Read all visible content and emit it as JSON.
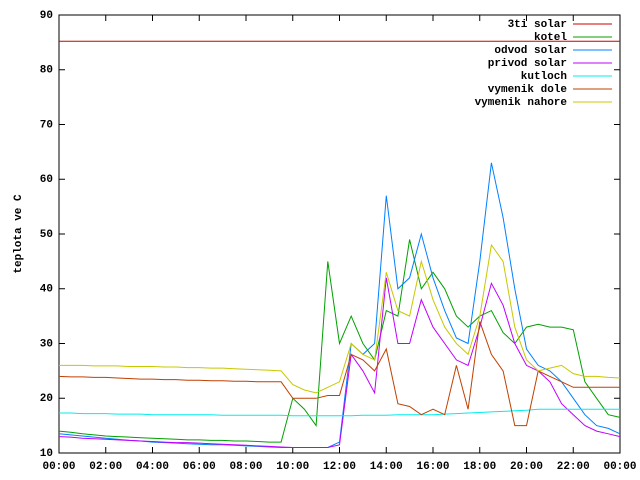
{
  "chart_data": {
    "type": "line",
    "ylabel": "teplota ve C",
    "x": [
      0,
      0.5,
      1,
      1.5,
      2,
      2.5,
      3,
      3.5,
      4,
      4.5,
      5,
      5.5,
      6,
      6.5,
      7,
      7.5,
      8,
      8.5,
      9,
      9.5,
      10,
      10.5,
      11,
      11.5,
      12,
      12.5,
      13,
      13.5,
      14,
      14.5,
      15,
      15.5,
      16,
      16.5,
      17,
      17.5,
      18,
      18.5,
      19,
      19.5,
      20,
      20.5,
      21,
      21.5,
      22,
      22.5,
      23,
      23.5,
      24
    ],
    "xlim": [
      0,
      24
    ],
    "xticks": [
      {
        "value": 0,
        "label": "00:00"
      },
      {
        "value": 2,
        "label": "02:00"
      },
      {
        "value": 4,
        "label": "04:00"
      },
      {
        "value": 6,
        "label": "06:00"
      },
      {
        "value": 8,
        "label": "08:00"
      },
      {
        "value": 10,
        "label": "10:00"
      },
      {
        "value": 12,
        "label": "12:00"
      },
      {
        "value": 14,
        "label": "14:00"
      },
      {
        "value": 16,
        "label": "16:00"
      },
      {
        "value": 18,
        "label": "18:00"
      },
      {
        "value": 20,
        "label": "20:00"
      },
      {
        "value": 22,
        "label": "22:00"
      },
      {
        "value": 24,
        "label": "00:00"
      }
    ],
    "ylim": [
      10,
      90
    ],
    "yticks": [
      10,
      20,
      30,
      40,
      50,
      60,
      70,
      80,
      90
    ],
    "legend": "top-right",
    "series": [
      {
        "name": "3ti solar",
        "color": "#cc0000",
        "values": [
          85.2,
          85.2,
          85.2,
          85.2,
          85.2,
          85.2,
          85.2,
          85.2,
          85.2,
          85.2,
          85.2,
          85.2,
          85.2,
          85.2,
          85.2,
          85.2,
          85.2,
          85.2,
          85.2,
          85.2,
          85.2,
          85.2,
          85.2,
          85.2,
          85.2,
          85.2,
          85.2,
          85.2,
          85.2,
          85.2,
          85.2,
          85.2,
          85.2,
          85.2,
          85.2,
          85.2,
          85.2,
          85.2,
          85.2,
          85.2,
          85.2,
          85.2,
          85.2,
          85.2,
          85.2,
          85.2,
          85.2,
          85.2,
          85.2
        ]
      },
      {
        "name": "kotel",
        "color": "#00a000",
        "values": [
          14,
          13.8,
          13.5,
          13.3,
          13.1,
          13,
          12.9,
          12.8,
          12.7,
          12.6,
          12.5,
          12.4,
          12.4,
          12.3,
          12.3,
          12.2,
          12.2,
          12.1,
          12,
          12,
          20,
          18,
          15,
          45,
          30,
          35,
          30,
          27,
          36,
          35,
          49,
          40,
          43,
          40,
          35,
          33,
          35,
          36,
          32,
          30,
          33,
          33.5,
          33,
          33,
          32.5,
          23,
          20,
          17,
          16.5
        ]
      },
      {
        "name": "odvod solar",
        "color": "#0080ff",
        "values": [
          13.5,
          13.3,
          13.1,
          12.9,
          12.7,
          12.5,
          12.3,
          12.2,
          12,
          11.9,
          11.8,
          11.7,
          11.6,
          11.5,
          11.5,
          11.4,
          11.3,
          11.2,
          11.1,
          11,
          11,
          11,
          11,
          11,
          12,
          30,
          28,
          30,
          57,
          40,
          42,
          50,
          42,
          36,
          31,
          30,
          45,
          63,
          53,
          40,
          29,
          26,
          25,
          23,
          20,
          17,
          15,
          14.5,
          13.5
        ]
      },
      {
        "name": "privod solar",
        "color": "#c000ff",
        "values": [
          13,
          12.9,
          12.7,
          12.6,
          12.5,
          12.4,
          12.3,
          12.2,
          12.1,
          12,
          11.9,
          11.9,
          11.8,
          11.7,
          11.6,
          11.5,
          11.4,
          11.3,
          11.2,
          11.1,
          11,
          11,
          11,
          11,
          11.5,
          28,
          25,
          21,
          42,
          30,
          30,
          38,
          33,
          30,
          27,
          26,
          33,
          41,
          37,
          30,
          26,
          25,
          23,
          19,
          17,
          15,
          14,
          13.5,
          13
        ]
      },
      {
        "name": "kutloch",
        "color": "#00eeee",
        "values": [
          17.3,
          17.3,
          17.2,
          17.2,
          17.2,
          17.1,
          17.1,
          17.1,
          17,
          17,
          17,
          17,
          17,
          17,
          16.9,
          16.9,
          16.9,
          16.9,
          16.9,
          16.9,
          16.8,
          16.8,
          16.8,
          16.8,
          16.8,
          16.8,
          16.9,
          16.9,
          16.9,
          17,
          17,
          17,
          17,
          17.1,
          17.2,
          17.3,
          17.4,
          17.5,
          17.6,
          17.7,
          17.8,
          18,
          18,
          18,
          18,
          18,
          18,
          18,
          18
        ]
      },
      {
        "name": "vymenik dole",
        "color": "#c04000",
        "values": [
          24,
          23.9,
          23.9,
          23.8,
          23.8,
          23.7,
          23.6,
          23.5,
          23.5,
          23.4,
          23.4,
          23.3,
          23.3,
          23.2,
          23.2,
          23.1,
          23.1,
          23,
          23,
          23,
          20,
          20,
          20,
          20.5,
          20.5,
          28,
          27,
          25,
          29,
          19,
          18.5,
          17,
          18,
          17,
          26,
          18,
          34,
          28,
          25,
          15,
          15,
          25,
          24,
          23,
          22,
          22,
          22,
          22,
          22
        ]
      },
      {
        "name": "vymenik nahore",
        "color": "#c8c800",
        "values": [
          26,
          26,
          26,
          25.9,
          25.9,
          25.9,
          25.8,
          25.8,
          25.8,
          25.7,
          25.7,
          25.6,
          25.6,
          25.5,
          25.5,
          25.4,
          25.3,
          25.2,
          25.1,
          25,
          22.5,
          21.5,
          21,
          22,
          23,
          30,
          28,
          27,
          43,
          36,
          35,
          45,
          38,
          33,
          30,
          28,
          35,
          48,
          45,
          33,
          27,
          25,
          25.5,
          26,
          24.5,
          24,
          24,
          23.8,
          23.7
        ]
      }
    ]
  }
}
